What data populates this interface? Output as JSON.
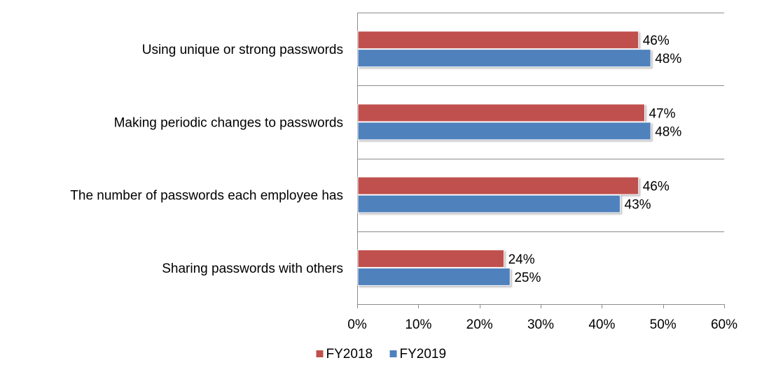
{
  "chart_data": {
    "type": "bar",
    "orientation": "horizontal",
    "categories": [
      "Using unique or strong passwords",
      "Making periodic changes to passwords",
      "The number of passwords each employee has",
      "Sharing passwords with others"
    ],
    "series": [
      {
        "name": "FY2018",
        "color": "#c0504d",
        "values": [
          46,
          47,
          46,
          24
        ],
        "labels": [
          "46%",
          "47%",
          "46%",
          "24%"
        ]
      },
      {
        "name": "FY2019",
        "color": "#4f81bd",
        "values": [
          48,
          48,
          43,
          25
        ],
        "labels": [
          "48%",
          "48%",
          "43%",
          "25%"
        ]
      }
    ],
    "xlim": [
      0,
      60
    ],
    "xticks": [
      0,
      10,
      20,
      30,
      40,
      50,
      60
    ],
    "xtick_labels": [
      "0%",
      "10%",
      "20%",
      "30%",
      "40%",
      "50%",
      "60%"
    ],
    "grid": false,
    "legend_position": "bottom",
    "title": "",
    "xlabel": "",
    "ylabel": ""
  }
}
